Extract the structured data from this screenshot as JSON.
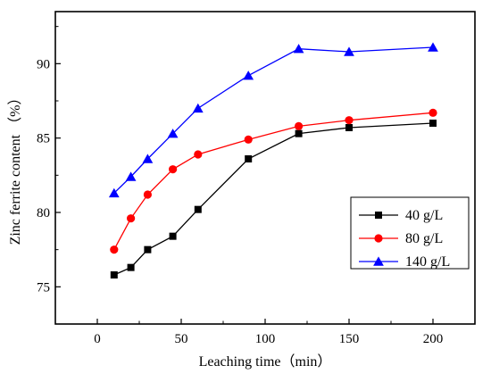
{
  "chart_data": {
    "type": "line",
    "xlabel": "Leaching time（min）",
    "ylabel": "Zinc ferrite content （%）",
    "xlim": [
      -25,
      225
    ],
    "ylim": [
      72.5,
      93.5
    ],
    "xticks": [
      0,
      50,
      100,
      150,
      200
    ],
    "yticks": [
      75,
      80,
      85,
      90
    ],
    "x": [
      10,
      20,
      30,
      45,
      60,
      90,
      120,
      150,
      200
    ],
    "grid": false,
    "legend_position": "center-right",
    "series": [
      {
        "name": "40 g/L",
        "color": "#000000",
        "marker": "square",
        "values": [
          75.8,
          76.3,
          77.5,
          78.4,
          80.2,
          83.6,
          85.3,
          85.7,
          86.0
        ]
      },
      {
        "name": "80 g/L",
        "color": "#ff0000",
        "marker": "circle",
        "values": [
          77.5,
          79.6,
          81.2,
          82.9,
          83.9,
          84.9,
          85.8,
          86.2,
          86.7
        ]
      },
      {
        "name": "140 g/L",
        "color": "#0000ff",
        "marker": "triangle",
        "values": [
          81.3,
          82.4,
          83.6,
          85.3,
          87.0,
          89.2,
          91.0,
          90.8,
          91.1
        ]
      }
    ]
  }
}
